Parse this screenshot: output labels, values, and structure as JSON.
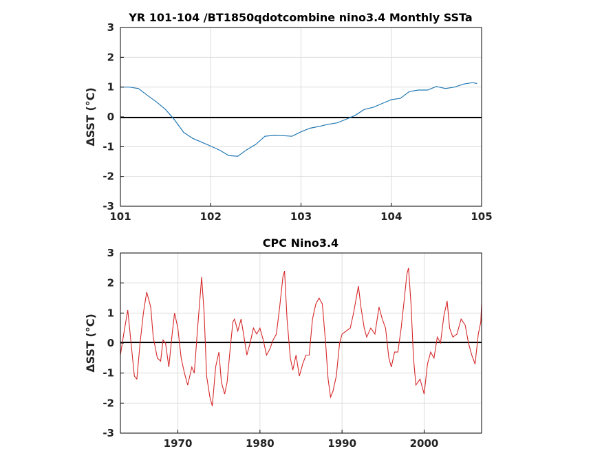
{
  "chart_data": [
    {
      "type": "line",
      "title": "YR 101-104 /BT1850qdotcombine nino3.4 Monthly SSTa",
      "xlabel": "",
      "ylabel": "ΔSST (°C)",
      "xlim": [
        101,
        105
      ],
      "ylim": [
        -3,
        3
      ],
      "xticks": [
        "101",
        "102",
        "103",
        "104",
        "105"
      ],
      "yticks": [
        "-3",
        "-2",
        "-1",
        "0",
        "1",
        "2",
        "3"
      ],
      "grid": true,
      "zero_line": true,
      "color": "#1f77b4",
      "series": [
        {
          "x": [
            101.0,
            101.1,
            101.2,
            101.3,
            101.4,
            101.5,
            101.6,
            101.7,
            101.8,
            101.9,
            102.0,
            102.1,
            102.2,
            102.3,
            102.4,
            102.5,
            102.6,
            102.7,
            102.8,
            102.9,
            103.0,
            103.1,
            103.2,
            103.3,
            103.4,
            103.5,
            103.6,
            103.7,
            103.8,
            103.9,
            104.0,
            104.1,
            104.2,
            104.3,
            104.4,
            104.5,
            104.6,
            104.7,
            104.8,
            104.9,
            104.95
          ],
          "values": [
            1.0,
            1.0,
            0.95,
            0.72,
            0.5,
            0.25,
            -0.1,
            -0.52,
            -0.72,
            -0.85,
            -0.98,
            -1.12,
            -1.3,
            -1.32,
            -1.1,
            -0.92,
            -0.65,
            -0.62,
            -0.63,
            -0.65,
            -0.5,
            -0.38,
            -0.32,
            -0.25,
            -0.2,
            -0.08,
            0.05,
            0.25,
            0.32,
            0.45,
            0.58,
            0.62,
            0.85,
            0.9,
            0.9,
            1.02,
            0.95,
            1.0,
            1.1,
            1.15,
            1.12
          ]
        }
      ]
    },
    {
      "type": "line",
      "title": "CPC Nino3.4",
      "xlabel": "",
      "ylabel": "ΔSST (°C)",
      "xlim": [
        1963,
        2007
      ],
      "ylim": [
        -3,
        3
      ],
      "xticks": [
        "1970",
        "1980",
        "1990",
        "2000"
      ],
      "yticks": [
        "-3",
        "-2",
        "-1",
        "0",
        "1",
        "2",
        "3"
      ],
      "grid": true,
      "zero_line": true,
      "color": "#d62728",
      "series": [
        {
          "x": [
            1963.0,
            1963.4,
            1963.9,
            1964.3,
            1964.7,
            1965.0,
            1965.4,
            1965.8,
            1966.2,
            1966.7,
            1967.0,
            1967.5,
            1967.9,
            1968.2,
            1968.5,
            1968.9,
            1969.3,
            1969.6,
            1970.0,
            1970.4,
            1970.8,
            1971.2,
            1971.7,
            1972.0,
            1972.4,
            1972.7,
            1972.9,
            1973.2,
            1973.5,
            1973.9,
            1974.2,
            1974.6,
            1975.0,
            1975.3,
            1975.7,
            1976.0,
            1976.4,
            1976.7,
            1976.9,
            1977.3,
            1977.7,
            1978.0,
            1978.4,
            1978.8,
            1979.2,
            1979.6,
            1980.0,
            1980.4,
            1980.8,
            1981.2,
            1981.6,
            1982.0,
            1982.4,
            1982.8,
            1983.0,
            1983.3,
            1983.7,
            1984.0,
            1984.4,
            1984.8,
            1985.2,
            1985.6,
            1986.0,
            1986.4,
            1986.8,
            1987.2,
            1987.6,
            1988.0,
            1988.3,
            1988.6,
            1988.9,
            1989.3,
            1989.7,
            1990.0,
            1990.5,
            1991.0,
            1991.4,
            1991.8,
            1992.0,
            1992.3,
            1992.7,
            1993.0,
            1993.5,
            1994.0,
            1994.5,
            1994.9,
            1995.3,
            1995.7,
            1996.0,
            1996.4,
            1996.8,
            1997.2,
            1997.6,
            1997.9,
            1998.1,
            1998.4,
            1998.7,
            1999.0,
            1999.5,
            2000.0,
            2000.4,
            2000.8,
            2001.2,
            2001.6,
            2002.0,
            2002.4,
            2002.8,
            2003.1,
            2003.5,
            2004.0,
            2004.5,
            2005.0,
            2005.4,
            2005.8,
            2006.2,
            2006.6,
            2006.9,
            2007.0
          ],
          "values": [
            -0.4,
            0.3,
            1.1,
            0.0,
            -1.1,
            -1.2,
            0.0,
            1.0,
            1.7,
            1.2,
            0.2,
            -0.5,
            -0.6,
            0.1,
            0.0,
            -0.8,
            0.3,
            1.0,
            0.5,
            -0.5,
            -1.0,
            -1.4,
            -0.8,
            -1.0,
            0.5,
            1.5,
            2.2,
            1.0,
            -1.1,
            -1.8,
            -2.1,
            -0.8,
            -0.3,
            -1.3,
            -1.7,
            -1.3,
            -0.1,
            0.7,
            0.8,
            0.4,
            0.8,
            0.3,
            -0.4,
            0.0,
            0.5,
            0.3,
            0.5,
            0.1,
            -0.4,
            -0.2,
            0.1,
            0.3,
            1.2,
            2.2,
            2.4,
            0.8,
            -0.5,
            -0.9,
            -0.4,
            -1.1,
            -0.7,
            -0.4,
            -0.4,
            0.8,
            1.3,
            1.5,
            1.3,
            0.0,
            -1.2,
            -1.8,
            -1.6,
            -1.1,
            0.0,
            0.3,
            0.4,
            0.5,
            1.0,
            1.6,
            1.9,
            1.2,
            0.5,
            0.2,
            0.5,
            0.3,
            1.2,
            0.8,
            0.5,
            -0.5,
            -0.8,
            -0.3,
            -0.3,
            0.5,
            1.5,
            2.3,
            2.5,
            1.3,
            -0.5,
            -1.4,
            -1.2,
            -1.7,
            -0.7,
            -0.3,
            -0.5,
            0.2,
            0.0,
            0.9,
            1.4,
            0.5,
            0.2,
            0.3,
            0.8,
            0.6,
            0.0,
            -0.4,
            -0.7,
            0.3,
            0.7,
            1.3
          ]
        }
      ]
    }
  ]
}
